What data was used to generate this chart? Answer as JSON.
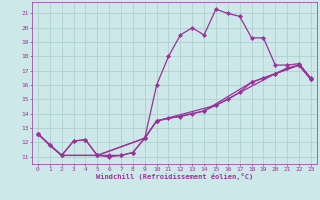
{
  "xlabel": "Windchill (Refroidissement éolien,°C)",
  "xlim": [
    -0.5,
    23.5
  ],
  "ylim": [
    10.5,
    21.8
  ],
  "yticks": [
    11,
    12,
    13,
    14,
    15,
    16,
    17,
    18,
    19,
    20,
    21
  ],
  "xticks": [
    0,
    1,
    2,
    3,
    4,
    5,
    6,
    7,
    8,
    9,
    10,
    11,
    12,
    13,
    14,
    15,
    16,
    17,
    18,
    19,
    20,
    21,
    22,
    23
  ],
  "background_color": "#cce8e8",
  "grid_color": "#aacccc",
  "line_color": "#993399",
  "marker": "D",
  "marker_size": 2.2,
  "line_width": 0.9,
  "series1": [
    [
      0,
      12.6
    ],
    [
      1,
      11.8
    ],
    [
      2,
      11.1
    ],
    [
      3,
      12.1
    ],
    [
      4,
      12.2
    ],
    [
      5,
      11.1
    ],
    [
      6,
      11.0
    ],
    [
      7,
      11.1
    ],
    [
      8,
      11.3
    ],
    [
      9,
      12.3
    ],
    [
      10,
      16.0
    ],
    [
      11,
      18.0
    ],
    [
      12,
      19.5
    ],
    [
      13,
      20.0
    ],
    [
      14,
      19.5
    ],
    [
      15,
      21.3
    ],
    [
      16,
      21.0
    ],
    [
      17,
      20.8
    ],
    [
      18,
      19.3
    ],
    [
      19,
      19.3
    ],
    [
      20,
      17.4
    ],
    [
      21,
      17.4
    ],
    [
      22,
      17.5
    ],
    [
      23,
      16.5
    ]
  ],
  "series2": [
    [
      0,
      12.6
    ],
    [
      1,
      11.8
    ],
    [
      2,
      11.1
    ],
    [
      3,
      12.1
    ],
    [
      4,
      12.2
    ],
    [
      5,
      11.1
    ],
    [
      6,
      11.1
    ],
    [
      7,
      11.1
    ],
    [
      8,
      11.3
    ],
    [
      9,
      12.3
    ],
    [
      10,
      13.5
    ],
    [
      11,
      13.7
    ],
    [
      12,
      13.8
    ],
    [
      13,
      14.0
    ],
    [
      14,
      14.2
    ],
    [
      15,
      14.6
    ],
    [
      16,
      15.0
    ],
    [
      17,
      15.5
    ],
    [
      18,
      16.2
    ],
    [
      19,
      16.5
    ],
    [
      20,
      16.8
    ],
    [
      21,
      17.2
    ],
    [
      22,
      17.4
    ],
    [
      23,
      16.4
    ]
  ],
  "series3": [
    [
      0,
      12.6
    ],
    [
      2,
      11.1
    ],
    [
      5,
      11.1
    ],
    [
      9,
      12.3
    ],
    [
      10,
      13.5
    ],
    [
      15,
      14.6
    ],
    [
      20,
      16.8
    ],
    [
      22,
      17.4
    ],
    [
      23,
      16.4
    ]
  ],
  "series4": [
    [
      0,
      12.6
    ],
    [
      2,
      11.1
    ],
    [
      5,
      11.1
    ],
    [
      9,
      12.3
    ],
    [
      10,
      13.5
    ],
    [
      14,
      14.2
    ],
    [
      18,
      16.2
    ],
    [
      22,
      17.4
    ],
    [
      23,
      16.4
    ]
  ]
}
